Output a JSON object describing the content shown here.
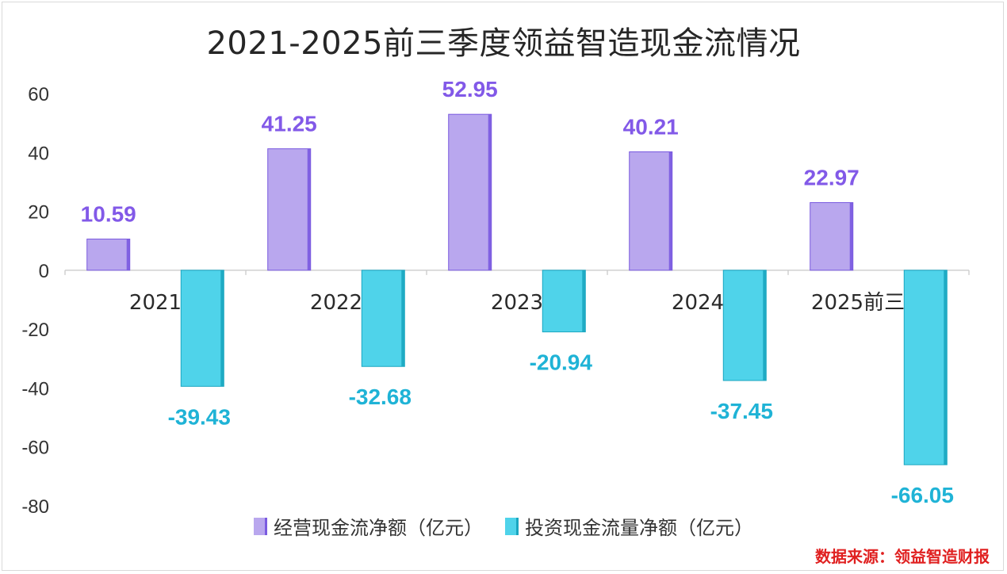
{
  "title": "2021-2025前三季度领益智造现金流情况",
  "source_note": "数据来源：领益智造财报",
  "colors": {
    "operating": "#b9a7ee",
    "operating_edge": "#7a5ae0",
    "investing": "#4fd3ea",
    "investing_edge": "#1aa6c0",
    "operating_label": "#8259e8",
    "investing_label": "#1fb3d6",
    "axis": "#d0d0d0",
    "tick": "#333333"
  },
  "chart_data": {
    "type": "bar",
    "title": "2021-2025前三季度领益智造现金流情况",
    "categories": [
      "2021",
      "2022",
      "2023",
      "2024",
      "2025前三季度"
    ],
    "series": [
      {
        "name": "经营现金流净额（亿元）",
        "values": [
          10.59,
          41.25,
          52.95,
          40.21,
          22.97
        ],
        "labels": [
          "10.59",
          "41.25",
          "52.95",
          "40.21",
          "22.97"
        ]
      },
      {
        "name": "投资现金流量净额（亿元）",
        "values": [
          -39.43,
          -32.68,
          -20.94,
          -37.45,
          -66.05
        ],
        "labels": [
          "-39.43",
          "-32.68",
          "-20.94",
          "-37.45",
          "-66.05"
        ]
      }
    ],
    "ylim": [
      -80,
      60
    ],
    "yticks": [
      "60",
      "40",
      "20",
      "0",
      "-20",
      "-40",
      "-60",
      "-80"
    ],
    "grid": false,
    "legend_position": "bottom"
  }
}
